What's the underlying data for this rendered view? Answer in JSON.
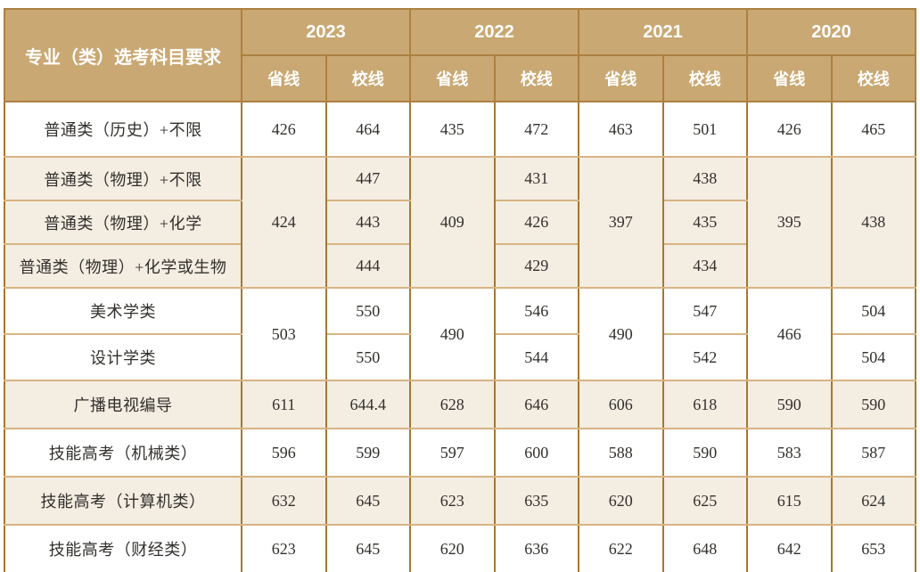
{
  "header": {
    "category": "专业（类）选考科目要求",
    "years": [
      "2023",
      "2022",
      "2021",
      "2020"
    ],
    "sub": [
      "省线",
      "校线"
    ]
  },
  "rows": [
    {
      "label": "普通类（历史）+不限",
      "values": [
        "426",
        "464",
        "435",
        "472",
        "463",
        "501",
        "426",
        "465"
      ]
    },
    {
      "label": "普通类（物理）+不限",
      "values": [
        "424",
        "447",
        "409",
        "431",
        "397",
        "438",
        "395",
        "438"
      ]
    },
    {
      "label": "普通类（物理）+化学",
      "values": [
        "443",
        "426",
        "435"
      ]
    },
    {
      "label": "普通类（物理）+化学或生物",
      "values": [
        "444",
        "429",
        "434"
      ]
    },
    {
      "label": "美术学类",
      "values": [
        "503",
        "550",
        "490",
        "546",
        "490",
        "547",
        "466",
        "504"
      ]
    },
    {
      "label": "设计学类",
      "values": [
        "550",
        "544",
        "542",
        "504"
      ]
    },
    {
      "label": "广播电视编导",
      "values": [
        "611",
        "644.4",
        "628",
        "646",
        "606",
        "618",
        "590",
        "590"
      ]
    },
    {
      "label": "技能高考（机械类）",
      "values": [
        "596",
        "599",
        "597",
        "600",
        "588",
        "590",
        "583",
        "587"
      ]
    },
    {
      "label": "技能高考（计算机类）",
      "values": [
        "632",
        "645",
        "623",
        "635",
        "620",
        "625",
        "615",
        "624"
      ]
    },
    {
      "label": "技能高考（财经类）",
      "values": [
        "623",
        "645",
        "620",
        "636",
        "622",
        "648",
        "642",
        "653"
      ]
    }
  ],
  "colors": {
    "header_bg": "#c9a873",
    "header_text": "#ffffff",
    "border_dark": "#a6782f",
    "border_light": "#d8b382",
    "row_alt_bg": "#f3ede2",
    "body_text": "#32302c"
  }
}
